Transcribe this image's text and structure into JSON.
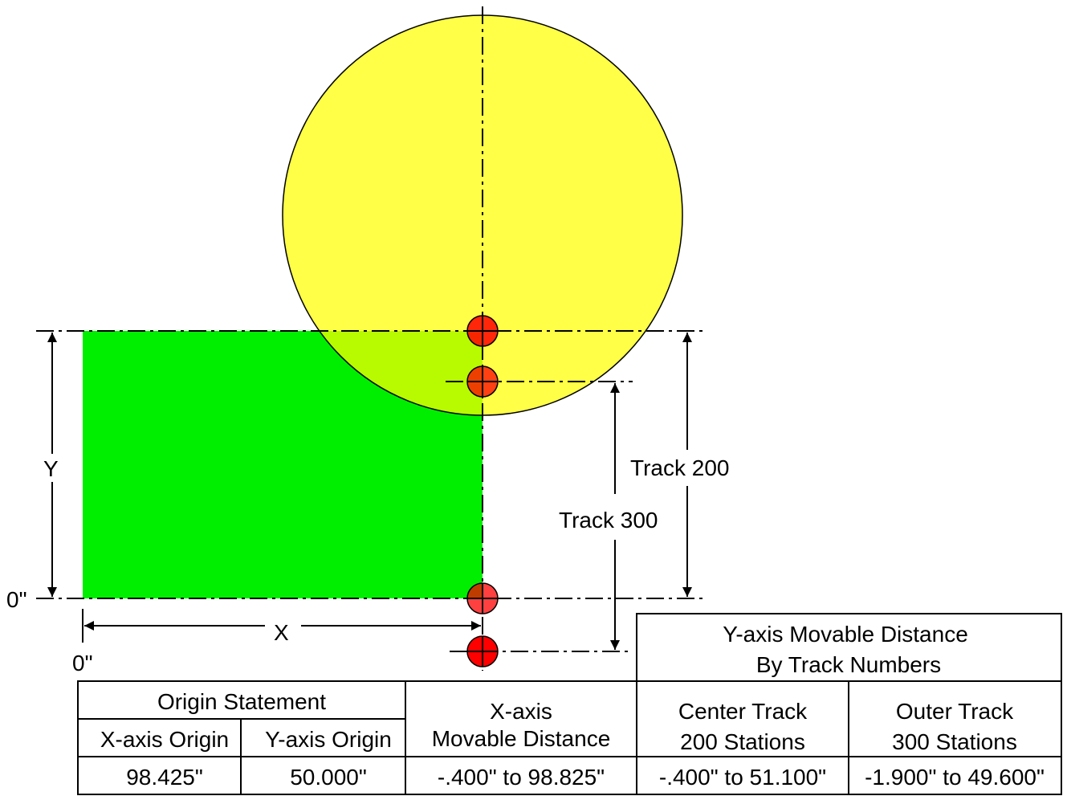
{
  "labels": {
    "y": "Y",
    "x": "X",
    "zero_left": "0\"",
    "zero_bottom": "0\"",
    "track_200": "Track 200",
    "track_300": "Track 300"
  },
  "colors": {
    "work_area": "#00ee00",
    "table_circle": "#ffff00",
    "station_marker": "#ff0000"
  },
  "table": {
    "y_movable_header_line1": "Y-axis Movable Distance",
    "y_movable_header_line2": "By Track Numbers",
    "origin_statement": "Origin Statement",
    "x_axis_origin": "X-axis Origin",
    "y_axis_origin": "Y-axis Origin",
    "x_movable_line1": "X-axis",
    "x_movable_line2": "Movable Distance",
    "center_track_line1": "Center Track",
    "center_track_line2": "200 Stations",
    "outer_track_line1": "Outer Track",
    "outer_track_line2": "300 Stations",
    "x_origin_value": "98.425\"",
    "y_origin_value": "50.000\"",
    "x_movable_value": "-.400\" to 98.825\"",
    "center_track_value": "-.400\" to 51.100\"",
    "outer_track_value": "-1.900\" to 49.600\""
  }
}
